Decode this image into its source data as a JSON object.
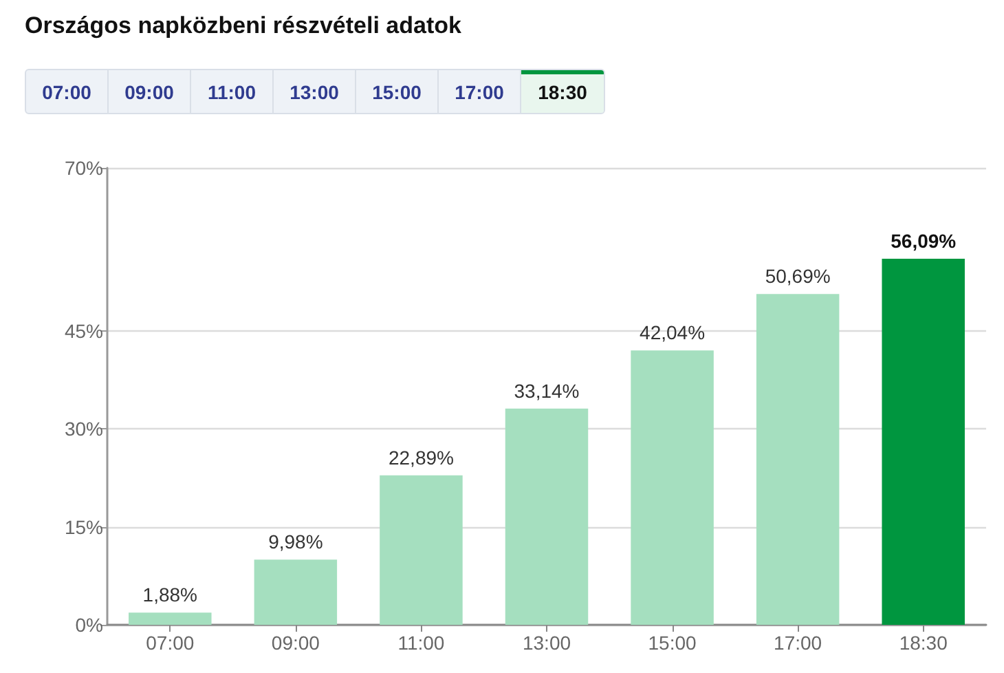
{
  "chart_data": {
    "type": "bar",
    "title": "Országos napközbeni részvételi adatok",
    "categories": [
      "07:00",
      "09:00",
      "11:00",
      "13:00",
      "15:00",
      "17:00",
      "18:30"
    ],
    "values": [
      1.88,
      9.98,
      22.89,
      33.14,
      42.04,
      50.69,
      56.09
    ],
    "value_labels": [
      "1,88%",
      "9,98%",
      "22,89%",
      "33,14%",
      "42,04%",
      "50,69%",
      "56,09%"
    ],
    "colors": [
      "#a5dfbf",
      "#a5dfbf",
      "#a5dfbf",
      "#a5dfbf",
      "#a5dfbf",
      "#a5dfbf",
      "#00963f"
    ],
    "ylim": [
      0,
      70
    ],
    "yticks": [
      {
        "value": 0,
        "label": "0%"
      },
      {
        "value": 15,
        "label": "15%"
      },
      {
        "value": 30,
        "label": "30%"
      },
      {
        "value": 45,
        "label": "45%"
      },
      {
        "value": 70,
        "label": "70%"
      }
    ],
    "grid": "y"
  }
}
